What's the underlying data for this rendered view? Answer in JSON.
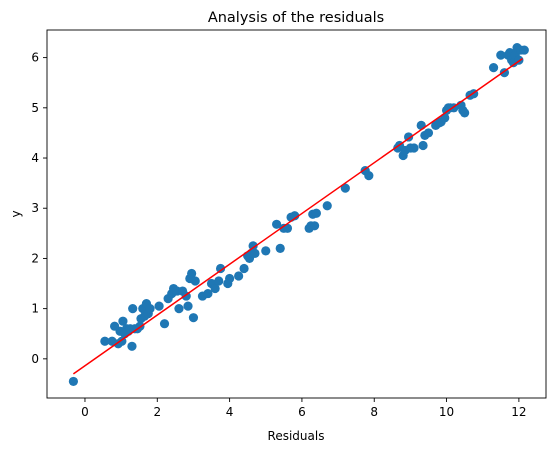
{
  "chart_data": {
    "type": "scatter",
    "title": "Analysis of the residuals",
    "xlabel": "Residuals",
    "ylabel": "y",
    "xlim": [
      -1.05,
      12.75
    ],
    "ylim": [
      -0.78,
      6.55
    ],
    "xticks": [
      0,
      2,
      4,
      6,
      8,
      10,
      12
    ],
    "yticks": [
      0,
      1,
      2,
      3,
      4,
      5,
      6
    ],
    "grid": false,
    "colors": {
      "points": "#1f77b4",
      "fit_line": "#ff0000"
    },
    "series": [
      {
        "type": "scatter",
        "x": [
          -0.32,
          0.55,
          0.75,
          0.82,
          0.92,
          0.97,
          1.02,
          1.05,
          1.1,
          1.15,
          1.2,
          1.25,
          1.3,
          1.32,
          1.38,
          1.45,
          1.52,
          1.55,
          1.6,
          1.65,
          1.7,
          1.75,
          1.8,
          2.05,
          2.2,
          2.3,
          2.4,
          2.45,
          2.55,
          2.6,
          2.7,
          2.8,
          2.85,
          2.9,
          2.95,
          3.0,
          3.05,
          3.25,
          3.4,
          3.5,
          3.6,
          3.7,
          3.75,
          3.95,
          4.0,
          4.25,
          4.4,
          4.5,
          4.55,
          4.6,
          4.65,
          4.7,
          5.0,
          5.3,
          5.4,
          5.5,
          5.6,
          5.7,
          5.8,
          6.2,
          6.25,
          6.3,
          6.35,
          6.4,
          6.7,
          7.2,
          7.75,
          7.85,
          8.65,
          8.7,
          8.8,
          8.85,
          8.95,
          9.0,
          9.1,
          9.3,
          9.35,
          9.4,
          9.5,
          9.7,
          9.8,
          9.85,
          9.95,
          10.0,
          10.05,
          10.1,
          10.2,
          10.4,
          10.45,
          10.5,
          10.65,
          10.75,
          11.3,
          11.5,
          11.6,
          11.7,
          11.75,
          11.8,
          11.85,
          11.9,
          11.95,
          12.0,
          12.05,
          12.15
        ],
        "y": [
          -0.45,
          0.35,
          0.35,
          0.65,
          0.3,
          0.55,
          0.35,
          0.75,
          0.5,
          0.6,
          0.55,
          0.6,
          0.25,
          1.0,
          0.6,
          0.6,
          0.65,
          0.8,
          1.0,
          0.85,
          1.1,
          0.9,
          1.0,
          1.05,
          0.7,
          1.2,
          1.3,
          1.4,
          1.35,
          1.0,
          1.35,
          1.25,
          1.05,
          1.6,
          1.7,
          0.82,
          1.55,
          1.25,
          1.3,
          1.5,
          1.4,
          1.55,
          1.8,
          1.5,
          1.6,
          1.65,
          1.8,
          2.05,
          2.0,
          2.1,
          2.25,
          2.1,
          2.15,
          2.68,
          2.2,
          2.6,
          2.6,
          2.82,
          2.85,
          2.6,
          2.65,
          2.88,
          2.65,
          2.9,
          3.05,
          3.4,
          3.75,
          3.65,
          4.2,
          4.25,
          4.05,
          4.15,
          4.42,
          4.2,
          4.2,
          4.65,
          4.25,
          4.45,
          4.5,
          4.65,
          4.7,
          4.72,
          4.8,
          4.95,
          5.0,
          5.0,
          5.0,
          5.05,
          4.95,
          4.9,
          5.25,
          5.28,
          5.8,
          6.05,
          5.7,
          6.05,
          6.1,
          5.95,
          5.9,
          6.05,
          6.2,
          5.95,
          6.15,
          6.15
        ]
      },
      {
        "type": "line",
        "x": [
          -0.32,
          12.1
        ],
        "y": [
          -0.3,
          5.98
        ]
      }
    ]
  }
}
